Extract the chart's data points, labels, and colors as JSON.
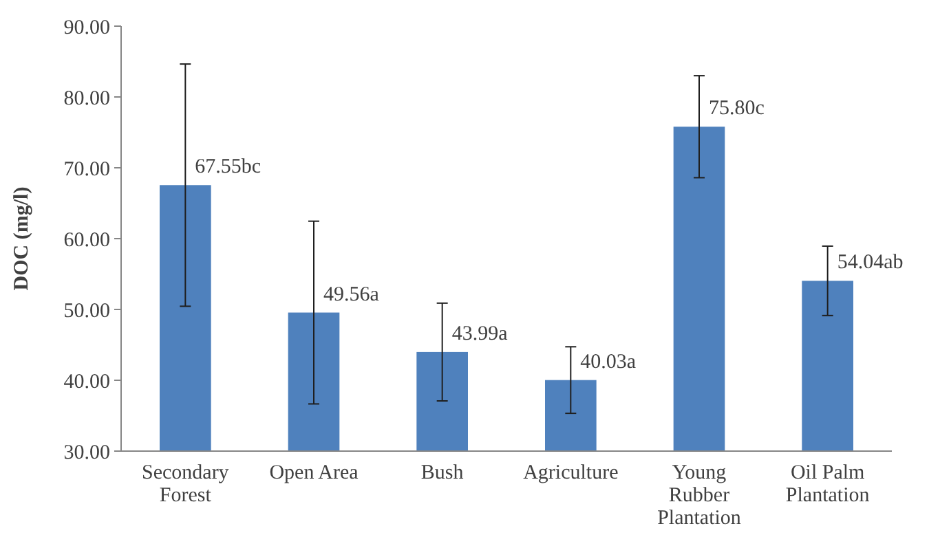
{
  "chart_data": {
    "type": "bar",
    "ylabel": "DOC (mg/l)",
    "categories": [
      "Secondary Forest",
      "Open Area",
      "Bush",
      "Agriculture",
      "Young Rubber Plantation",
      "Oil Palm Plantation"
    ],
    "values": [
      67.55,
      49.56,
      43.99,
      40.03,
      75.8,
      54.04
    ],
    "errors": [
      17.1,
      12.9,
      6.9,
      4.7,
      7.2,
      4.9
    ],
    "value_labels": [
      "67.55bc",
      "49.56a",
      "43.99a",
      "40.03a",
      "75.80c",
      "54.04ab"
    ],
    "color": "#4f81bd",
    "ylim": [
      30,
      90
    ],
    "yticks": [
      {
        "value": 30,
        "label": "30.00"
      },
      {
        "value": 40,
        "label": "40.00"
      },
      {
        "value": 50,
        "label": "50.00"
      },
      {
        "value": 60,
        "label": "60.00"
      },
      {
        "value": 70,
        "label": "70.00"
      },
      {
        "value": 80,
        "label": "80.00"
      },
      {
        "value": 90,
        "label": "90.00"
      }
    ],
    "grid": false,
    "legend": false
  }
}
